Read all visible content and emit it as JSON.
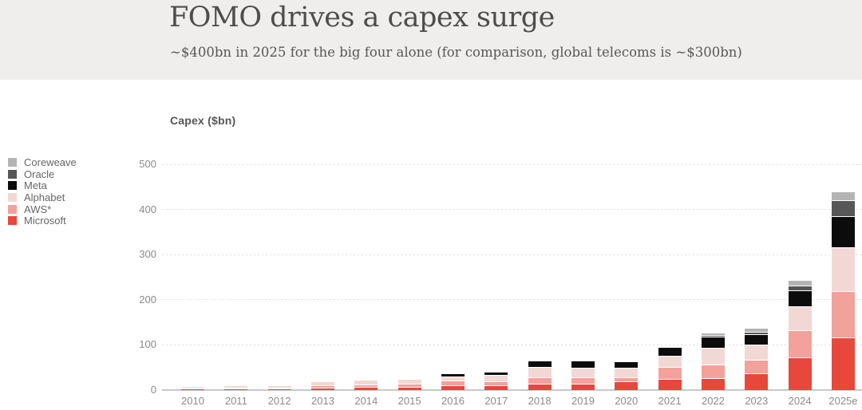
{
  "header": {
    "title": "FOMO drives a capex surge",
    "subtitle": "~$400bn in 2025 for the big four alone (for comparison, global telecoms is ~$300bn)"
  },
  "chart_data": {
    "type": "bar",
    "stacked": true,
    "ylabel": "Capex ($bn)",
    "categories": [
      "2010",
      "2011",
      "2012",
      "2013",
      "2014",
      "2015",
      "2016",
      "2017",
      "2018",
      "2019",
      "2020",
      "2021",
      "2022",
      "2023",
      "2024",
      "2025e"
    ],
    "series": [
      {
        "name": "Microsoft",
        "color": "#e8473c",
        "values": [
          2,
          2.5,
          3,
          4.5,
          5.5,
          6,
          10,
          10.5,
          14,
          14,
          19,
          24,
          25,
          37,
          72,
          116
        ]
      },
      {
        "name": "AWS*",
        "color": "#f3a19b",
        "values": [
          1,
          1.5,
          2,
          5.5,
          6,
          6.5,
          10,
          8.5,
          14,
          13,
          8,
          27,
          31,
          30,
          59,
          103
        ]
      },
      {
        "name": "Alphabet",
        "color": "#f2d8d4",
        "values": [
          2,
          3,
          3.5,
          7.5,
          8.5,
          9,
          10,
          14,
          22,
          22,
          21,
          25,
          36,
          32,
          54,
          97
        ]
      },
      {
        "name": "Meta",
        "color": "#0c0c0c",
        "values": [
          0,
          0,
          0,
          0,
          0,
          0,
          4.5,
          5,
          12,
          13,
          13,
          16,
          25,
          24,
          35,
          68
        ]
      },
      {
        "name": "Oracle",
        "color": "#575757",
        "values": [
          0,
          0,
          0,
          0,
          0,
          0,
          0,
          0,
          0,
          0,
          0,
          0,
          3.5,
          6,
          10,
          35
        ]
      },
      {
        "name": "Coreweave",
        "color": "#b4b4b4",
        "values": [
          0,
          0,
          0,
          0,
          0,
          0,
          0,
          0,
          0,
          0,
          0,
          0,
          3.5,
          6,
          12,
          18
        ]
      }
    ],
    "legend": [
      {
        "label": "Coreweave",
        "color": "#b4b4b4"
      },
      {
        "label": "Oracle",
        "color": "#575757"
      },
      {
        "label": "Meta",
        "color": "#0c0c0c"
      },
      {
        "label": "Alphabet",
        "color": "#f2d8d4"
      },
      {
        "label": "AWS*",
        "color": "#f3a19b"
      },
      {
        "label": "Microsoft",
        "color": "#e8473c"
      }
    ],
    "y_ticks": [
      0,
      100,
      200,
      300,
      400,
      500
    ],
    "ylim": [
      0,
      500
    ],
    "legend_position": "left",
    "grid": "dotted-horizontal"
  },
  "colors": {
    "header_background": "#efeeec",
    "title_text": "#4d4d4d",
    "axis_text": "#8a8a8a",
    "axis_line": "#c9c9c9"
  }
}
